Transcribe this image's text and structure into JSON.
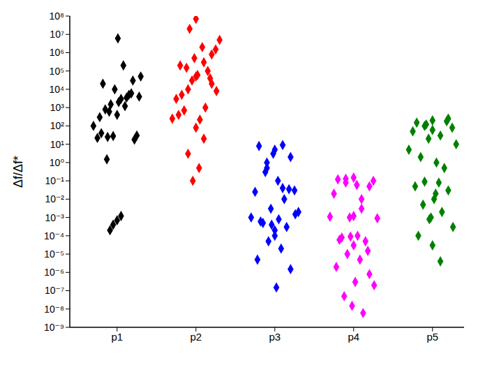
{
  "chart_data": {
    "type": "scatter",
    "y_label": "Δf/Δf*",
    "log": "y",
    "marker": "diamond",
    "grid": false,
    "xlim": [
      0.4,
      5.4
    ],
    "xticks": [
      {
        "value": 1,
        "label": "p1"
      },
      {
        "value": 2,
        "label": "p2"
      },
      {
        "value": 3,
        "label": "p3"
      },
      {
        "value": 4,
        "label": "p4"
      },
      {
        "value": 5,
        "label": "p5"
      }
    ],
    "ylim": [
      1e-09,
      100000000
    ],
    "yticks": [
      {
        "value": 1e-09,
        "label": "10⁻⁹"
      },
      {
        "value": 1e-08,
        "label": "10⁻⁸"
      },
      {
        "value": 1e-07,
        "label": "10⁻⁷"
      },
      {
        "value": 1e-06,
        "label": "10⁻⁶"
      },
      {
        "value": 1e-05,
        "label": "10⁻⁵"
      },
      {
        "value": 0.0001,
        "label": "10⁻⁴"
      },
      {
        "value": 0.001,
        "label": "10⁻³"
      },
      {
        "value": 0.01,
        "label": "10⁻²"
      },
      {
        "value": 0.1,
        "label": "10⁻¹"
      },
      {
        "value": 1,
        "label": "10⁰"
      },
      {
        "value": 10,
        "label": "10¹"
      },
      {
        "value": 100,
        "label": "10²"
      },
      {
        "value": 1000,
        "label": "10³"
      },
      {
        "value": 10000,
        "label": "10⁴"
      },
      {
        "value": 100000,
        "label": "10⁵"
      },
      {
        "value": 1000000,
        "label": "10⁶"
      },
      {
        "value": 10000000,
        "label": "10⁷"
      },
      {
        "value": 100000000,
        "label": "10⁸"
      }
    ],
    "series": [
      {
        "color": "#000000",
        "x": [
          1.02,
          0.85,
          1.15,
          0.92,
          1.2,
          0.78,
          1.05,
          0.97,
          1.3,
          0.7,
          1.1,
          0.88,
          1.25,
          0.95,
          1.0,
          0.82,
          1.18,
          1.08,
          0.75,
          1.22,
          0.9,
          1.12,
          0.8,
          1.28,
          1.01,
          0.87,
          0.95,
          1.05,
          0.91,
          1.0
        ],
        "values": [
          2000,
          800,
          5000,
          1500,
          30000,
          300,
          3000,
          10000,
          50000,
          100,
          1200,
          25,
          30,
          28,
          400,
          20000,
          6000,
          200000,
          22,
          18,
          600,
          3500,
          40,
          4000,
          6000000,
          1.5,
          0.0004,
          0.0012,
          0.0002,
          0.0007
        ]
      },
      {
        "color": "#ff0000",
        "x": [
          2.0,
          1.8,
          2.2,
          1.9,
          2.25,
          1.75,
          2.1,
          1.95,
          2.3,
          1.7,
          2.05,
          1.85,
          2.15,
          2.0,
          1.92,
          2.08,
          1.78,
          2.2,
          2.02,
          1.88,
          2.12,
          1.98,
          2.26,
          1.82,
          2.0,
          2.1,
          1.9,
          2.04,
          1.96,
          2.18
        ],
        "values": [
          50000,
          200000,
          800000,
          10000,
          1500000,
          3000,
          300000,
          30000,
          5000000,
          250,
          220,
          700,
          100000,
          70000000,
          20000000,
          2000000,
          400,
          20000,
          60000,
          150000,
          1000,
          500000,
          8000,
          5000,
          80,
          20,
          3,
          0.5,
          0.1,
          40000
        ]
      },
      {
        "color": "#0000ff",
        "x": [
          3.0,
          2.8,
          3.2,
          2.9,
          3.25,
          2.75,
          3.1,
          2.95,
          3.3,
          2.7,
          3.05,
          2.85,
          3.15,
          3.0,
          2.92,
          3.08,
          2.78,
          3.2,
          3.02,
          2.88,
          3.12,
          2.98,
          3.26,
          2.82,
          3.0,
          3.1,
          2.9,
          3.04,
          2.96,
          3.18
        ],
        "values": [
          5,
          8,
          2,
          0.5,
          0.03,
          0.025,
          0.04,
          0.003,
          0.002,
          0.001,
          0.0008,
          0.0005,
          0.0003,
          0.0001,
          5e-05,
          2e-05,
          5e-06,
          1.5e-06,
          1.5e-07,
          0.3,
          0.01,
          3,
          0.0015,
          0.0006,
          0.0002,
          9,
          1,
          0.1,
          0.0004,
          0.035
        ]
      },
      {
        "color": "#ff00ff",
        "x": [
          4.0,
          3.8,
          4.2,
          3.9,
          4.25,
          3.75,
          4.1,
          3.95,
          4.3,
          3.7,
          4.05,
          3.85,
          4.15,
          4.0,
          3.92,
          4.08,
          3.78,
          4.2,
          4.02,
          3.88,
          4.12,
          3.98,
          4.26,
          3.82,
          4.0,
          4.1,
          3.9,
          4.04,
          3.96,
          4.18
        ],
        "values": [
          0.15,
          0.12,
          0.05,
          0.08,
          0.1,
          0.02,
          0.01,
          0.001,
          0.0009,
          0.0011,
          0.0001,
          8e-05,
          5e-05,
          3e-05,
          1e-05,
          5e-06,
          2e-06,
          8e-07,
          3e-07,
          5e-08,
          6e-09,
          1.5e-08,
          2e-07,
          6e-05,
          0.0012,
          0.003,
          0.13,
          0.06,
          9e-05,
          1.5e-05
        ]
      },
      {
        "color": "#008000",
        "x": [
          5.0,
          4.8,
          5.2,
          4.9,
          5.25,
          4.75,
          5.1,
          4.95,
          5.3,
          4.7,
          5.05,
          4.85,
          5.15,
          5.0,
          4.92,
          5.08,
          4.78,
          5.2,
          5.02,
          4.88,
          5.12,
          4.98,
          5.26,
          4.82,
          5.0,
          5.1,
          4.9,
          5.04,
          4.96,
          5.18
        ],
        "values": [
          200,
          150,
          250,
          100,
          80,
          50,
          30,
          20,
          10,
          5,
          1,
          2,
          0.5,
          60,
          120,
          0.08,
          0.05,
          0.03,
          0.01,
          0.005,
          0.002,
          0.001,
          0.0003,
          0.0001,
          3e-05,
          4e-06,
          0.09,
          0.02,
          0.0008,
          180
        ]
      }
    ]
  }
}
